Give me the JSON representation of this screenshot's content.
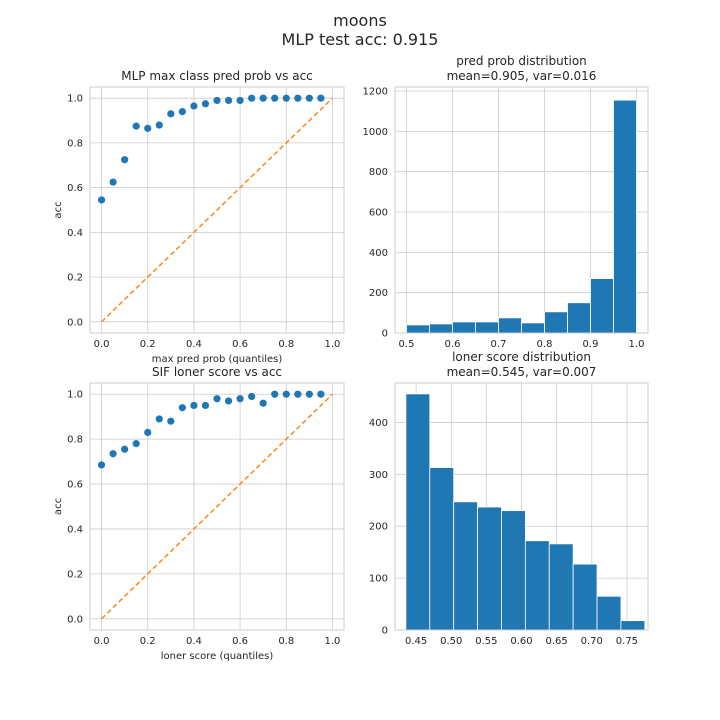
{
  "figure": {
    "title_line1": "moons",
    "title_line2": "MLP test acc: 0.915"
  },
  "chart_data": [
    {
      "type": "scatter",
      "title": "MLP max class pred prob vs acc",
      "xlabel": "max pred prob (quantiles)",
      "ylabel": "acc",
      "xlim": [
        -0.05,
        1.05
      ],
      "ylim": [
        -0.05,
        1.05
      ],
      "xticks": [
        0.0,
        0.2,
        0.4,
        0.6,
        0.8,
        1.0
      ],
      "yticks": [
        0.0,
        0.2,
        0.4,
        0.6,
        0.8,
        1.0
      ],
      "grid": true,
      "x": [
        0.0,
        0.05,
        0.1,
        0.15,
        0.2,
        0.25,
        0.3,
        0.35,
        0.4,
        0.45,
        0.5,
        0.55,
        0.6,
        0.65,
        0.7,
        0.75,
        0.8,
        0.85,
        0.9,
        0.95
      ],
      "y": [
        0.545,
        0.625,
        0.725,
        0.875,
        0.865,
        0.88,
        0.93,
        0.94,
        0.965,
        0.975,
        0.99,
        0.99,
        0.99,
        1.0,
        1.0,
        1.0,
        1.0,
        1.0,
        1.0,
        1.0
      ],
      "point_color": "#1f77b4",
      "reference_line": {
        "x": [
          0.0,
          1.0
        ],
        "y": [
          0.0,
          1.0
        ],
        "color": "#ff7f0e",
        "style": "dashed"
      }
    },
    {
      "type": "bar",
      "subtype": "histogram",
      "title": "pred prob distribution",
      "subtitle": "mean=0.905, var=0.016",
      "xlim": [
        0.475,
        1.025
      ],
      "ylim": [
        0,
        1220
      ],
      "xticks": [
        0.5,
        0.6,
        0.7,
        0.8,
        0.9,
        1.0
      ],
      "yticks": [
        0,
        200,
        400,
        600,
        800,
        1000,
        1200
      ],
      "grid": true,
      "bin_edges": [
        0.5,
        0.55,
        0.6,
        0.65,
        0.7,
        0.75,
        0.8,
        0.85,
        0.9,
        0.95,
        1.0
      ],
      "values": [
        40,
        45,
        55,
        55,
        75,
        50,
        105,
        150,
        270,
        1155
      ],
      "bar_color": "#1f77b4"
    },
    {
      "type": "scatter",
      "title": "SIF loner score vs acc",
      "xlabel": "loner score (quantiles)",
      "ylabel": "acc",
      "xlim": [
        -0.05,
        1.05
      ],
      "ylim": [
        -0.05,
        1.05
      ],
      "xticks": [
        0.0,
        0.2,
        0.4,
        0.6,
        0.8,
        1.0
      ],
      "yticks": [
        0.0,
        0.2,
        0.4,
        0.6,
        0.8,
        1.0
      ],
      "grid": true,
      "x": [
        0.0,
        0.05,
        0.1,
        0.15,
        0.2,
        0.25,
        0.3,
        0.35,
        0.4,
        0.45,
        0.5,
        0.55,
        0.6,
        0.65,
        0.7,
        0.75,
        0.8,
        0.85,
        0.9,
        0.95
      ],
      "y": [
        0.685,
        0.735,
        0.755,
        0.78,
        0.83,
        0.89,
        0.88,
        0.94,
        0.95,
        0.95,
        0.98,
        0.97,
        0.98,
        0.99,
        0.96,
        1.0,
        1.0,
        1.0,
        1.0,
        1.0
      ],
      "point_color": "#1f77b4",
      "reference_line": {
        "x": [
          0.0,
          1.0
        ],
        "y": [
          0.0,
          1.0
        ],
        "color": "#ff7f0e",
        "style": "dashed"
      }
    },
    {
      "type": "bar",
      "subtype": "histogram",
      "title": "loner score distribution",
      "subtitle": "mean=0.545, var=0.007",
      "xlim": [
        0.42,
        0.78
      ],
      "ylim": [
        0,
        476
      ],
      "xticks": [
        0.45,
        0.5,
        0.55,
        0.6,
        0.65,
        0.7,
        0.75
      ],
      "xtick_labels": [
        "0.45",
        "0.50",
        "0.55",
        "0.60",
        "0.65",
        "0.70",
        "0.75"
      ],
      "yticks": [
        0,
        100,
        200,
        300,
        400
      ],
      "grid": true,
      "bin_edges": [
        0.4355,
        0.4695,
        0.5035,
        0.5375,
        0.5715,
        0.6055,
        0.6395,
        0.6735,
        0.7075,
        0.7415,
        0.7755
      ],
      "values": [
        455,
        313,
        247,
        237,
        230,
        172,
        166,
        127,
        65,
        18
      ],
      "bar_color": "#1f77b4"
    }
  ]
}
